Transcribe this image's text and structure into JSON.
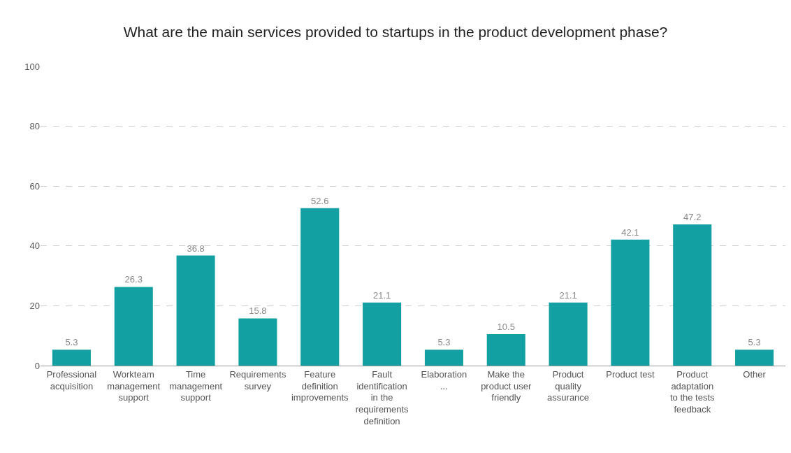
{
  "chart_data": {
    "type": "bar",
    "title": "What are the main services provided to startups in the product development phase?",
    "categories": [
      "Professional acquisition",
      "Workteam management support",
      "Time management support",
      "Requirements survey",
      "Feature definition improvements",
      "Fault identification in the requirements definition",
      "Elaboration ...",
      "Make the product user friendly",
      "Product quality assurance",
      "Product test",
      "Product adaptation to the tests feedback",
      "Other"
    ],
    "values": [
      5.3,
      26.3,
      36.8,
      15.8,
      52.6,
      21.1,
      5.3,
      10.5,
      21.1,
      42.1,
      47.2,
      5.3
    ],
    "color": "#12a0a3",
    "ylim": [
      0,
      100
    ],
    "yticks": [
      0,
      20,
      40,
      60,
      80,
      100
    ],
    "grid": "y",
    "data_labels": true
  }
}
